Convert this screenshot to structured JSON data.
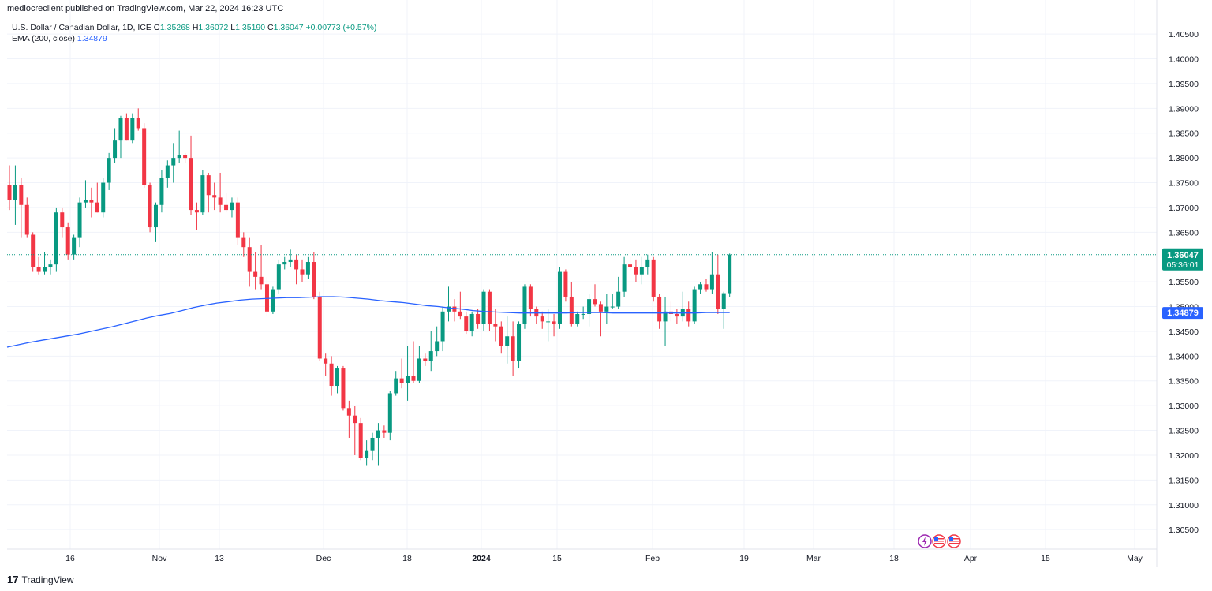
{
  "header": {
    "publisher_line": "mediocreclient published on TradingView.com, Mar 22, 2024 16:23 UTC"
  },
  "legend": {
    "symbol": "U.S. Dollar / Canadian Dollar, 1D, ICE",
    "open_label": "O",
    "open": "1.35268",
    "high_label": "H",
    "high": "1.36072",
    "low_label": "L",
    "low": "1.35190",
    "close_label": "C",
    "close": "1.36047",
    "change": "+0.00773 (+0.57%)",
    "ema_label": "EMA (200, close)",
    "ema_value": "1.34879"
  },
  "price_axis": {
    "ticks": [
      "1.40500",
      "1.40000",
      "1.39500",
      "1.39000",
      "1.38500",
      "1.38000",
      "1.37500",
      "1.37000",
      "1.36500",
      "1.35500",
      "1.35000",
      "1.34500",
      "1.34000",
      "1.33500",
      "1.33000",
      "1.32500",
      "1.32000",
      "1.31500",
      "1.31000",
      "1.30500"
    ],
    "last_price_label": "1.36047",
    "countdown": "05:36:01",
    "ema_label": "1.34879"
  },
  "time_axis": {
    "labels": [
      "16",
      "Nov",
      "13",
      "Dec",
      "18",
      "2024",
      "15",
      "Feb",
      "19",
      "Mar",
      "18",
      "Apr",
      "15",
      "May"
    ]
  },
  "colors": {
    "up": "#089981",
    "down": "#f23645",
    "ema": "#2962ff",
    "grid": "#f0f3fa"
  },
  "footer": {
    "brand": "TradingView",
    "logo_glyph": "17"
  },
  "chart_data": {
    "type": "candlestick",
    "title": "U.S. Dollar / Canadian Dollar, 1D, ICE",
    "ylim": [
      1.302,
      1.409
    ],
    "last_price": 1.36047,
    "ohlc": [
      [
        1.3745,
        1.3785,
        1.3695,
        1.3715
      ],
      [
        1.3715,
        1.3785,
        1.3665,
        1.3745
      ],
      [
        1.3745,
        1.376,
        1.364,
        1.3705
      ],
      [
        1.3705,
        1.372,
        1.364,
        1.3645
      ],
      [
        1.3645,
        1.365,
        1.357,
        1.358
      ],
      [
        1.358,
        1.36,
        1.3565,
        1.357
      ],
      [
        1.357,
        1.361,
        1.3565,
        1.358
      ],
      [
        1.358,
        1.3595,
        1.3565,
        1.3585
      ],
      [
        1.3585,
        1.37,
        1.357,
        1.369
      ],
      [
        1.369,
        1.37,
        1.364,
        1.366
      ],
      [
        1.366,
        1.367,
        1.3595,
        1.3605
      ],
      [
        1.3605,
        1.3645,
        1.3595,
        1.364
      ],
      [
        1.364,
        1.372,
        1.362,
        1.371
      ],
      [
        1.371,
        1.3755,
        1.37,
        1.3715
      ],
      [
        1.3715,
        1.374,
        1.368,
        1.371
      ],
      [
        1.371,
        1.375,
        1.369,
        1.369
      ],
      [
        1.369,
        1.376,
        1.368,
        1.375
      ],
      [
        1.375,
        1.381,
        1.3735,
        1.38
      ],
      [
        1.38,
        1.386,
        1.379,
        1.3835
      ],
      [
        1.3835,
        1.3885,
        1.38,
        1.388
      ],
      [
        1.388,
        1.389,
        1.3835,
        1.3835
      ],
      [
        1.3835,
        1.389,
        1.383,
        1.388
      ],
      [
        1.388,
        1.39,
        1.3855,
        1.386
      ],
      [
        1.386,
        1.387,
        1.374,
        1.3745
      ],
      [
        1.3745,
        1.375,
        1.365,
        1.366
      ],
      [
        1.366,
        1.371,
        1.363,
        1.3705
      ],
      [
        1.3705,
        1.3775,
        1.369,
        1.376
      ],
      [
        1.376,
        1.3795,
        1.374,
        1.3785
      ],
      [
        1.3785,
        1.383,
        1.375,
        1.38
      ],
      [
        1.38,
        1.3855,
        1.379,
        1.3805
      ],
      [
        1.3805,
        1.381,
        1.379,
        1.38
      ],
      [
        1.38,
        1.3845,
        1.3685,
        1.3695
      ],
      [
        1.3695,
        1.371,
        1.3655,
        1.369
      ],
      [
        1.369,
        1.3775,
        1.3685,
        1.3765
      ],
      [
        1.3765,
        1.377,
        1.369,
        1.3725
      ],
      [
        1.3725,
        1.375,
        1.3695,
        1.372
      ],
      [
        1.372,
        1.377,
        1.369,
        1.3705
      ],
      [
        1.3705,
        1.373,
        1.369,
        1.3695
      ],
      [
        1.3695,
        1.372,
        1.368,
        1.371
      ],
      [
        1.371,
        1.372,
        1.3625,
        1.364
      ],
      [
        1.364,
        1.365,
        1.36,
        1.362
      ],
      [
        1.362,
        1.364,
        1.354,
        1.357
      ],
      [
        1.357,
        1.361,
        1.3535,
        1.356
      ],
      [
        1.356,
        1.3625,
        1.3535,
        1.3545
      ],
      [
        1.3545,
        1.356,
        1.348,
        1.349
      ],
      [
        1.349,
        1.354,
        1.3485,
        1.3535
      ],
      [
        1.3535,
        1.3595,
        1.3525,
        1.3585
      ],
      [
        1.3585,
        1.36,
        1.3575,
        1.359
      ],
      [
        1.359,
        1.3615,
        1.358,
        1.3595
      ],
      [
        1.3595,
        1.3605,
        1.3545,
        1.3575
      ],
      [
        1.3575,
        1.3595,
        1.355,
        1.3565
      ],
      [
        1.3565,
        1.36,
        1.3555,
        1.359
      ],
      [
        1.359,
        1.361,
        1.3515,
        1.352
      ],
      [
        1.352,
        1.353,
        1.339,
        1.3395
      ],
      [
        1.3395,
        1.3405,
        1.336,
        1.3385
      ],
      [
        1.3385,
        1.34,
        1.332,
        1.334
      ],
      [
        1.334,
        1.338,
        1.3325,
        1.3375
      ],
      [
        1.3375,
        1.338,
        1.329,
        1.3295
      ],
      [
        1.3295,
        1.331,
        1.3235,
        1.328
      ],
      [
        1.328,
        1.33,
        1.32,
        1.3265
      ],
      [
        1.3265,
        1.3275,
        1.319,
        1.3195
      ],
      [
        1.3195,
        1.323,
        1.318,
        1.321
      ],
      [
        1.321,
        1.3245,
        1.319,
        1.3235
      ],
      [
        1.3235,
        1.3265,
        1.318,
        1.325
      ],
      [
        1.325,
        1.326,
        1.3235,
        1.3245
      ],
      [
        1.3245,
        1.333,
        1.323,
        1.3325
      ],
      [
        1.3325,
        1.337,
        1.332,
        1.3355
      ],
      [
        1.3355,
        1.3395,
        1.3335,
        1.3345
      ],
      [
        1.3345,
        1.342,
        1.331,
        1.336
      ],
      [
        1.336,
        1.343,
        1.3345,
        1.335
      ],
      [
        1.335,
        1.342,
        1.3345,
        1.3395
      ],
      [
        1.3395,
        1.3405,
        1.338,
        1.339
      ],
      [
        1.339,
        1.345,
        1.337,
        1.341
      ],
      [
        1.341,
        1.346,
        1.34,
        1.343
      ],
      [
        1.343,
        1.35,
        1.341,
        1.349
      ],
      [
        1.349,
        1.354,
        1.347,
        1.35
      ],
      [
        1.35,
        1.3515,
        1.347,
        1.349
      ],
      [
        1.349,
        1.353,
        1.3475,
        1.348
      ],
      [
        1.348,
        1.349,
        1.3445,
        1.345
      ],
      [
        1.345,
        1.349,
        1.344,
        1.3485
      ],
      [
        1.3485,
        1.3495,
        1.3455,
        1.3465
      ],
      [
        1.3465,
        1.3535,
        1.345,
        1.353
      ],
      [
        1.353,
        1.3535,
        1.345,
        1.3465
      ],
      [
        1.3465,
        1.3495,
        1.343,
        1.346
      ],
      [
        1.346,
        1.347,
        1.3405,
        1.342
      ],
      [
        1.342,
        1.348,
        1.3385,
        1.344
      ],
      [
        1.344,
        1.347,
        1.336,
        1.339
      ],
      [
        1.339,
        1.347,
        1.3375,
        1.3465
      ],
      [
        1.3465,
        1.3545,
        1.3455,
        1.354
      ],
      [
        1.354,
        1.3545,
        1.348,
        1.3495
      ],
      [
        1.3495,
        1.35,
        1.3465,
        1.348
      ],
      [
        1.348,
        1.349,
        1.3455,
        1.347
      ],
      [
        1.347,
        1.3495,
        1.343,
        1.347
      ],
      [
        1.347,
        1.3485,
        1.344,
        1.3465
      ],
      [
        1.3465,
        1.358,
        1.3455,
        1.357
      ],
      [
        1.357,
        1.3575,
        1.351,
        1.352
      ],
      [
        1.352,
        1.355,
        1.346,
        1.3465
      ],
      [
        1.3465,
        1.349,
        1.346,
        1.3485
      ],
      [
        1.3485,
        1.35,
        1.3475,
        1.3485
      ],
      [
        1.3485,
        1.3525,
        1.346,
        1.3515
      ],
      [
        1.3515,
        1.3545,
        1.35,
        1.3505
      ],
      [
        1.3505,
        1.351,
        1.344,
        1.349
      ],
      [
        1.349,
        1.3525,
        1.3465,
        1.35
      ],
      [
        1.35,
        1.3525,
        1.3495,
        1.35
      ],
      [
        1.35,
        1.356,
        1.3495,
        1.353
      ],
      [
        1.353,
        1.36,
        1.352,
        1.3585
      ],
      [
        1.3585,
        1.36,
        1.357,
        1.358
      ],
      [
        1.358,
        1.3595,
        1.355,
        1.3565
      ],
      [
        1.3565,
        1.36,
        1.3545,
        1.358
      ],
      [
        1.358,
        1.3605,
        1.3565,
        1.3595
      ],
      [
        1.3595,
        1.36,
        1.351,
        1.352
      ],
      [
        1.352,
        1.3525,
        1.3455,
        1.347
      ],
      [
        1.347,
        1.352,
        1.342,
        1.349
      ],
      [
        1.349,
        1.351,
        1.347,
        1.3485
      ],
      [
        1.3485,
        1.3495,
        1.3465,
        1.348
      ],
      [
        1.348,
        1.353,
        1.347,
        1.3495
      ],
      [
        1.3495,
        1.351,
        1.346,
        1.347
      ],
      [
        1.347,
        1.354,
        1.3465,
        1.3535
      ],
      [
        1.3535,
        1.355,
        1.3525,
        1.3545
      ],
      [
        1.3545,
        1.3555,
        1.353,
        1.3535
      ],
      [
        1.3535,
        1.361,
        1.3525,
        1.3565
      ],
      [
        1.3565,
        1.3605,
        1.3485,
        1.3495
      ],
      [
        1.3495,
        1.353,
        1.3455,
        1.3527
      ],
      [
        1.3527,
        1.3607,
        1.3519,
        1.3605
      ]
    ],
    "series": [
      {
        "name": "EMA (200, close)",
        "values": [
          1.3418,
          1.3423,
          1.3428,
          1.3432,
          1.3436,
          1.344,
          1.3444,
          1.3449,
          1.3454,
          1.3459,
          1.3465,
          1.3471,
          1.3477,
          1.3482,
          1.3486,
          1.3492,
          1.3498,
          1.3503,
          1.3507,
          1.351,
          1.3513,
          1.3515,
          1.3516,
          1.3517,
          1.3518,
          1.3518,
          1.3519,
          1.352,
          1.352,
          1.3519,
          1.3517,
          1.3515,
          1.3512,
          1.351,
          1.3508,
          1.3505,
          1.3502,
          1.35,
          1.3497,
          1.3495,
          1.3492,
          1.349,
          1.3489,
          1.3488,
          1.3487,
          1.3487,
          1.3487,
          1.3487,
          1.3487,
          1.3488,
          1.3488,
          1.3488,
          1.3487,
          1.3487,
          1.3487,
          1.3487,
          1.3487,
          1.3487,
          1.3487,
          1.3487,
          1.3488,
          1.3488,
          1.3488
        ]
      }
    ]
  }
}
